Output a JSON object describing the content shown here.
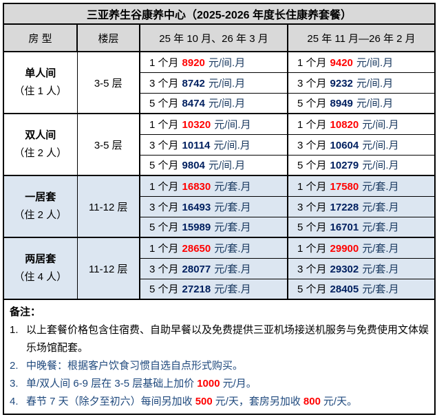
{
  "colors": {
    "header_bg": "#d9d9d9",
    "blue_row_bg": "#dce6f1",
    "price_highlight_red": "#ff0000",
    "price_navy": "#002060",
    "note_blue": "#1f497d",
    "border": "#000000"
  },
  "table": {
    "title": "三亚养生谷康养中心（2025-2026 年度长住康养套餐）",
    "headers": {
      "room": "房 型",
      "floor": "楼层",
      "period1": "25 年 10 月、26 年 3 月",
      "period2": "25 年 11 月—26 年 2 月"
    },
    "groups": [
      {
        "room": "单人间",
        "occupancy": "（住 1 人）",
        "floor": "3-5 层",
        "unit": "元/间.月",
        "rows": [
          {
            "duration": "1 个月",
            "price1": "8920",
            "price2": "9420"
          },
          {
            "duration": "3 个月",
            "price1": "8742",
            "price2": "9232"
          },
          {
            "duration": "5 个月",
            "price1": "8474",
            "price2": "8949"
          }
        ]
      },
      {
        "room": "双人间",
        "occupancy": "（住 2 人）",
        "floor": "3-5 层",
        "unit": "元/间.月",
        "rows": [
          {
            "duration": "1 个月",
            "price1": "10320",
            "price2": "10820"
          },
          {
            "duration": "3 个月",
            "price1": "10114",
            "price2": "10604"
          },
          {
            "duration": "5 个月",
            "price1": "9804",
            "price2": "10279"
          }
        ]
      },
      {
        "room": "一居套",
        "occupancy": "（住 2 人）",
        "floor": "11-12 层",
        "unit": "元/套.月",
        "rows": [
          {
            "duration": "1 个月",
            "price1": "16830",
            "price2": "17580"
          },
          {
            "duration": "3 个月",
            "price1": "16493",
            "price2": "17228"
          },
          {
            "duration": "5 个月",
            "price1": "15989",
            "price2": "16701"
          }
        ]
      },
      {
        "room": "两居套",
        "occupancy": "（住 4 人）",
        "floor": "11-12 层",
        "unit": "元/套.月",
        "rows": [
          {
            "duration": "1 个月",
            "price1": "28650",
            "price2": "29900"
          },
          {
            "duration": "3 个月",
            "price1": "28077",
            "price2": "29302"
          },
          {
            "duration": "5 个月",
            "price1": "27218",
            "price2": "28405"
          }
        ]
      }
    ]
  },
  "notes": {
    "label": "备注：",
    "note1_num": "1.",
    "note1_text": "以上套餐价格包含住宿费、自助早餐以及免费提供三亚机场接送机服务与免费使用文体娱乐场馆配套。",
    "note2_num": "2.",
    "note2_text": "中晚餐：根据客户饮食习惯自选自点形式购买。",
    "note3_num": "3.",
    "note3_pre": "单/双人间 6-9 层在 3-5 层基础上加价",
    "note3_value": "1000",
    "note3_post": "元/月。",
    "note4_num": "4.",
    "note4_pre": "春节 7 天（除夕至初六）每间另加收",
    "note4_value1": "500",
    "note4_mid": "元/天，套房另加收",
    "note4_value2": "800",
    "note4_post": "元/天。"
  }
}
